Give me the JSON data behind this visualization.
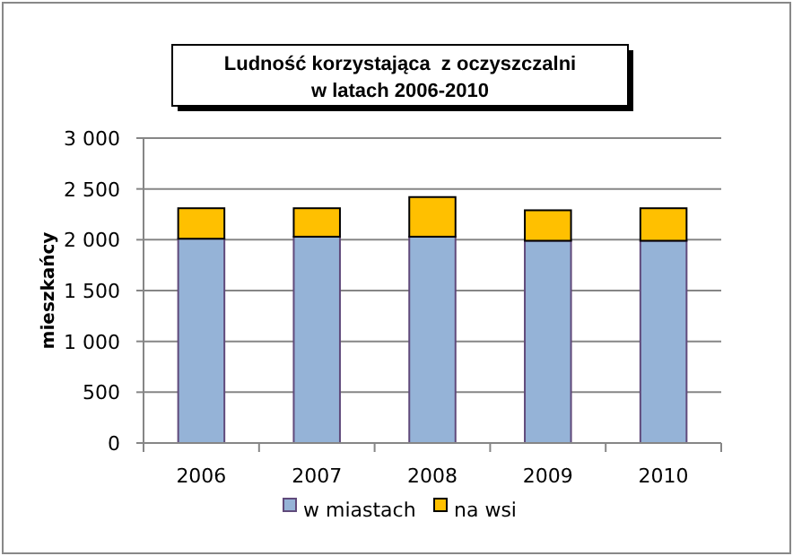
{
  "chart_data": {
    "type": "bar",
    "title": "Ludność korzystająca  z oczyszczalni\nw latach 2006-2010",
    "ylabel": "mieszkańcy",
    "categories": [
      "2006",
      "2007",
      "2008",
      "2009",
      "2010"
    ],
    "stacked": true,
    "series": [
      {
        "name": "w miastach",
        "color": "#95b3d7",
        "values": [
          2010,
          2030,
          2030,
          1990,
          1990
        ]
      },
      {
        "name": "na wsi",
        "color": "#ffc000",
        "values": [
          300,
          280,
          390,
          300,
          320
        ]
      }
    ],
    "ylim": [
      0,
      3000
    ],
    "yticks": [
      {
        "value": 0,
        "label": "0"
      },
      {
        "value": 500,
        "label": "500"
      },
      {
        "value": 1000,
        "label": "1 000"
      },
      {
        "value": 1500,
        "label": "1 500"
      },
      {
        "value": 2000,
        "label": "2 000"
      },
      {
        "value": 2500,
        "label": "2 500"
      },
      {
        "value": 3000,
        "label": "3 000"
      }
    ],
    "grid": "y",
    "legend": "bottom"
  }
}
